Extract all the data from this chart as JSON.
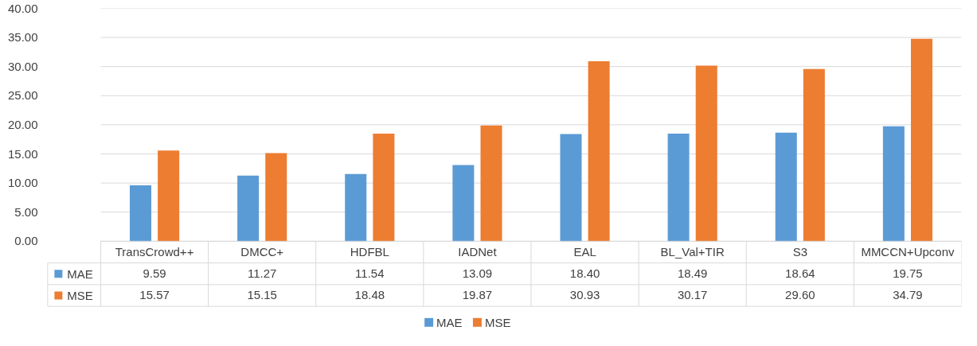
{
  "chart_data": {
    "type": "bar",
    "categories": [
      "TransCrowd++",
      "DMCC+",
      "HDFBL",
      "IADNet",
      "EAL",
      "BL_Val+TIR",
      "S3",
      "MMCCN+Upconv"
    ],
    "series": [
      {
        "name": "MAE",
        "color": "#5b9bd5",
        "values": [
          9.59,
          11.27,
          11.54,
          13.09,
          18.4,
          18.49,
          18.64,
          19.75
        ],
        "value_labels": [
          "9.59",
          "11.27",
          "11.54",
          "13.09",
          "18.40",
          "18.49",
          "18.64",
          "19.75"
        ]
      },
      {
        "name": "MSE",
        "color": "#ed7d31",
        "values": [
          15.57,
          15.15,
          18.48,
          19.87,
          30.93,
          30.17,
          29.6,
          34.79
        ],
        "value_labels": [
          "15.57",
          "15.15",
          "18.48",
          "19.87",
          "30.93",
          "30.17",
          "29.60",
          "34.79"
        ]
      }
    ],
    "ylim": [
      0,
      40
    ],
    "yticks": [
      {
        "value": 0,
        "label": "0.00"
      },
      {
        "value": 5,
        "label": "5.00"
      },
      {
        "value": 10,
        "label": "10.00"
      },
      {
        "value": 15,
        "label": "15.00"
      },
      {
        "value": 20,
        "label": "20.00"
      },
      {
        "value": 25,
        "label": "25.00"
      },
      {
        "value": 30,
        "label": "30.00"
      },
      {
        "value": 35,
        "label": "35.00"
      },
      {
        "value": 40,
        "label": "40.00"
      }
    ],
    "grid": "y",
    "legend": "bottom"
  }
}
